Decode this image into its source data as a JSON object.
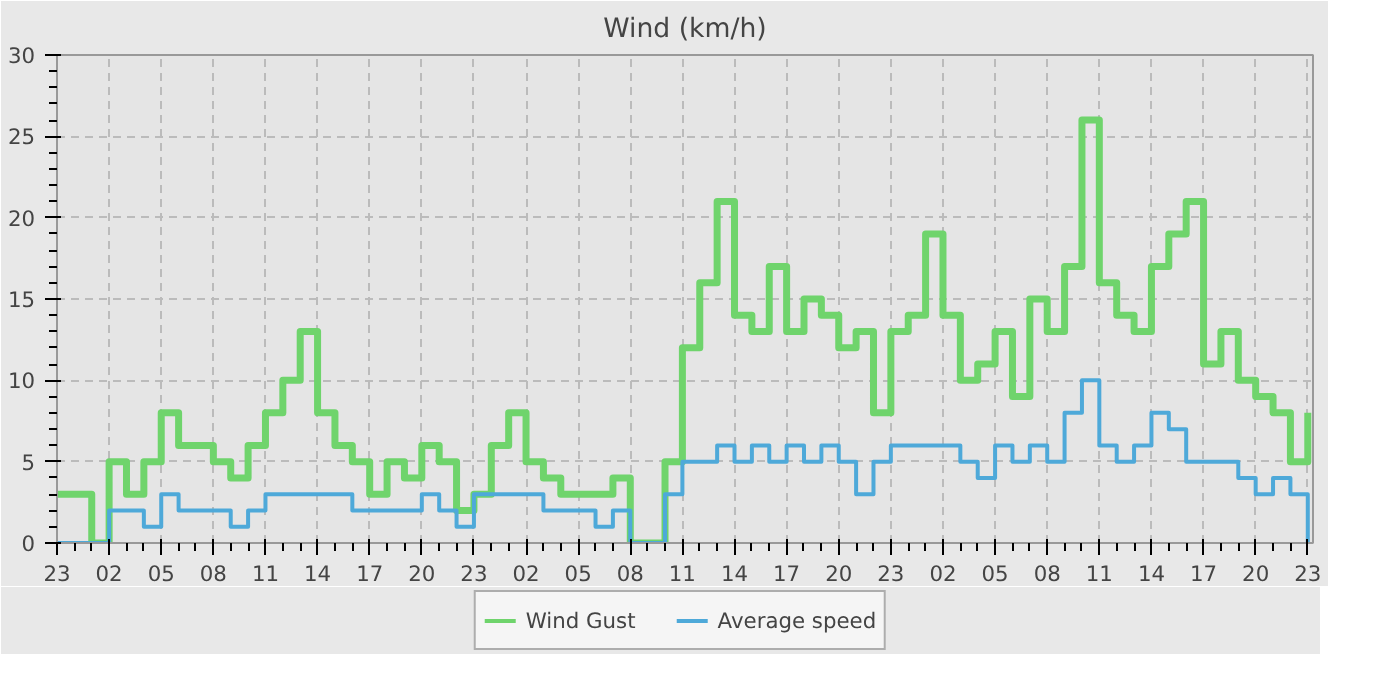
{
  "chart_data": {
    "type": "step",
    "title": "Wind (km/h)",
    "categories": [
      "23",
      null,
      null,
      "02",
      null,
      null,
      "05",
      null,
      null,
      "08",
      null,
      null,
      "11",
      null,
      null,
      "14",
      null,
      null,
      "17",
      null,
      null,
      "20",
      null,
      null,
      "23",
      null,
      null,
      "02",
      null,
      null,
      "05",
      null,
      null,
      "08",
      null,
      null,
      "11",
      null,
      null,
      "14",
      null,
      null,
      "17",
      null,
      null,
      "20",
      null,
      null,
      "23",
      null,
      null,
      "02",
      null,
      null,
      "05",
      null,
      null,
      "08",
      null,
      null,
      "11",
      null,
      null,
      "14",
      null,
      null,
      "17",
      null,
      null,
      "20",
      null,
      null,
      "23"
    ],
    "series": [
      {
        "name": "Wind Gust",
        "color": "#6fd46c",
        "values": [
          3,
          3,
          0,
          5,
          3,
          5,
          8,
          6,
          6,
          5,
          4,
          6,
          8,
          10,
          13,
          8,
          6,
          5,
          3,
          5,
          4,
          6,
          5,
          2,
          3,
          6,
          8,
          5,
          4,
          3,
          3,
          3,
          4,
          0,
          0,
          5,
          12,
          16,
          21,
          14,
          13,
          17,
          13,
          15,
          14,
          12,
          13,
          8,
          13,
          14,
          19,
          14,
          10,
          11,
          13,
          9,
          15,
          13,
          17,
          26,
          16,
          14,
          13,
          17,
          19,
          21,
          11,
          13,
          10,
          9,
          8,
          5,
          8
        ]
      },
      {
        "name": "Average speed",
        "color": "#4ea9d9",
        "values": [
          0,
          0,
          0,
          2,
          2,
          1,
          3,
          2,
          2,
          2,
          1,
          2,
          3,
          3,
          3,
          3,
          3,
          2,
          2,
          2,
          2,
          3,
          2,
          1,
          3,
          3,
          3,
          3,
          2,
          2,
          2,
          1,
          2,
          0,
          0,
          3,
          5,
          5,
          6,
          5,
          6,
          5,
          6,
          5,
          6,
          5,
          3,
          5,
          6,
          6,
          6,
          6,
          5,
          4,
          6,
          5,
          6,
          5,
          8,
          10,
          6,
          5,
          6,
          8,
          7,
          5,
          5,
          5,
          4,
          3,
          4,
          3,
          0
        ]
      }
    ],
    "ylim": [
      0,
      30
    ],
    "yticks": [
      0,
      5,
      10,
      15,
      20,
      25,
      30
    ],
    "grid": true,
    "legend": "bottom",
    "line_style": "solid",
    "marker": "none"
  }
}
